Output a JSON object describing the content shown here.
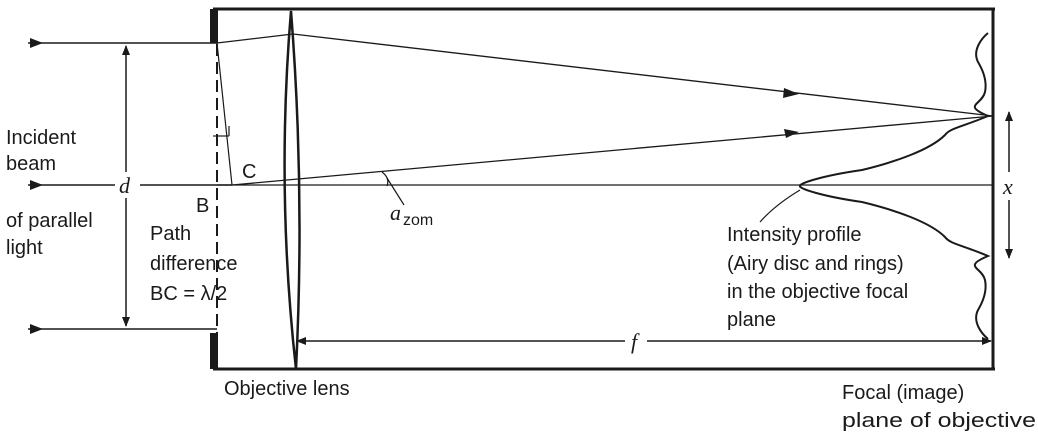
{
  "labels": {
    "incident_1": "Incident",
    "incident_2": "beam",
    "incident_3": "of parallel",
    "incident_4": "light",
    "d": "d",
    "B": "B",
    "C": "C",
    "path_1": "Path",
    "path_2": "difference",
    "path_3": "BC = λ/2",
    "alpha": "a",
    "alpha_sub": "zom",
    "intensity_1": "Intensity profile",
    "intensity_2": "(Airy disc and rings)",
    "intensity_3": "in the objective focal",
    "intensity_4": "plane",
    "f": "f",
    "x": "x",
    "objective_lens": "Objective lens",
    "focal_1": "Focal (image)",
    "focal_2": "plane of objective"
  }
}
